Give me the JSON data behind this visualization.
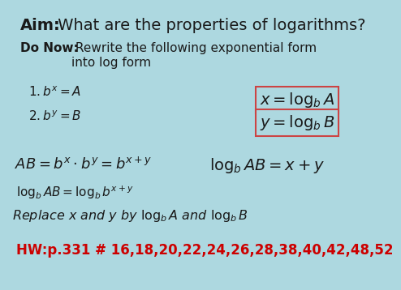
{
  "background_color": "#add8e0",
  "text_color": "#1a1a1a",
  "red_color": "#cc0000",
  "box_edge_color": "#cc4444",
  "title_bold": "Aim:",
  "title_rest": " What are the properties of logarithms?",
  "donow_bold": "Do Now:",
  "donow_line1": " Rewrite the following exponential form",
  "donow_line2": "into log form",
  "item1": "$1.b^x = A$",
  "item2": "$2.b^y = B$",
  "box1_math": "$x = \\log_b A$",
  "box2_math": "$y = \\log_b B$",
  "line3": "$AB = b^x \\cdot b^y = b^{x+y}$",
  "line4": "$\\log_b AB = x + y$",
  "line5": "$\\log_b AB = \\log_b b^{x + y}$",
  "line6": "Replace $x$ and $y$ by $\\log_b A$ and $\\log_b B$",
  "hw": "HW:p.331 # 16,18,20,22,24,26,28,38,40,42,48,52"
}
